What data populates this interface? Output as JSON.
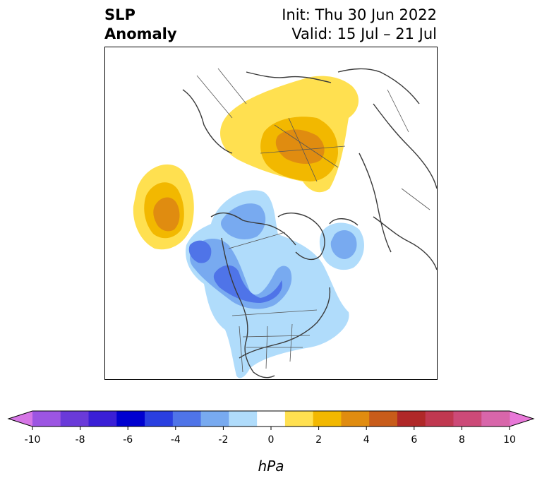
{
  "title": {
    "left_line1": "SLP",
    "left_line2": "Anomaly",
    "right_line1": "Init: Thu 30 Jun 2022",
    "right_line2": "Valid: 15 Jul – 21 Jul"
  },
  "colorbar": {
    "unit": "hPa",
    "ticks": [
      "-10",
      "-8",
      "-6",
      "-4",
      "-2",
      "0",
      "2",
      "4",
      "6",
      "8",
      "10"
    ],
    "colors": [
      "#d676e6",
      "#9c55e2",
      "#6a3ad9",
      "#3a1fd6",
      "#0000d0",
      "#2a3fe0",
      "#4f74e8",
      "#78aaf0",
      "#b0dcfb",
      "#ffffff",
      "#ffe050",
      "#f2b800",
      "#e08c10",
      "#c85c1a",
      "#b02828",
      "#c03850",
      "#cc4a78",
      "#d866aa",
      "#e878d8"
    ]
  },
  "legend_colors": {
    "neg_light": "#b0dcfb",
    "neg_mid": "#78aaf0",
    "neg_strong": "#4f74e8",
    "neg_deep": "#2a3fe0",
    "pos_light": "#ffe050",
    "pos_mid": "#f2b800",
    "pos_strong": "#e08c10"
  }
}
